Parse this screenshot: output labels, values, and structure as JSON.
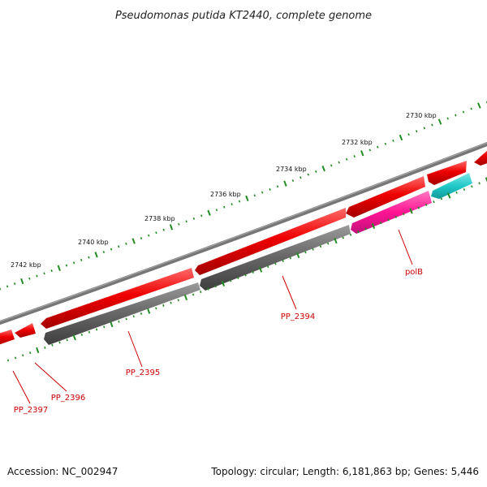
{
  "title": "Pseudomonas putida KT2440, complete genome",
  "footer": {
    "accession": "Accession: NC_002947",
    "summary": "Topology: circular; Length: 6,181,863 bp; Genes: 5,446"
  },
  "colors": {
    "backbone": "#777777",
    "cds": "#ee0000",
    "gene": "#666666",
    "pseudogene": "#ff1493",
    "rna": "#22c9c9",
    "tick": "#228b22",
    "label": "#cc0000"
  },
  "ticks": [
    {
      "label": "2730 kbp"
    },
    {
      "label": "2732 kbp"
    },
    {
      "label": "2734 kbp"
    },
    {
      "label": "2736 kbp"
    },
    {
      "label": "2738 kbp"
    },
    {
      "label": "2740 kbp"
    },
    {
      "label": "2742 kbp"
    }
  ],
  "gene_labels": [
    {
      "label": "polB"
    },
    {
      "label": "PP_2394"
    },
    {
      "label": "PP_2395"
    },
    {
      "label": "PP_2396"
    },
    {
      "label": "PP_2397"
    }
  ]
}
